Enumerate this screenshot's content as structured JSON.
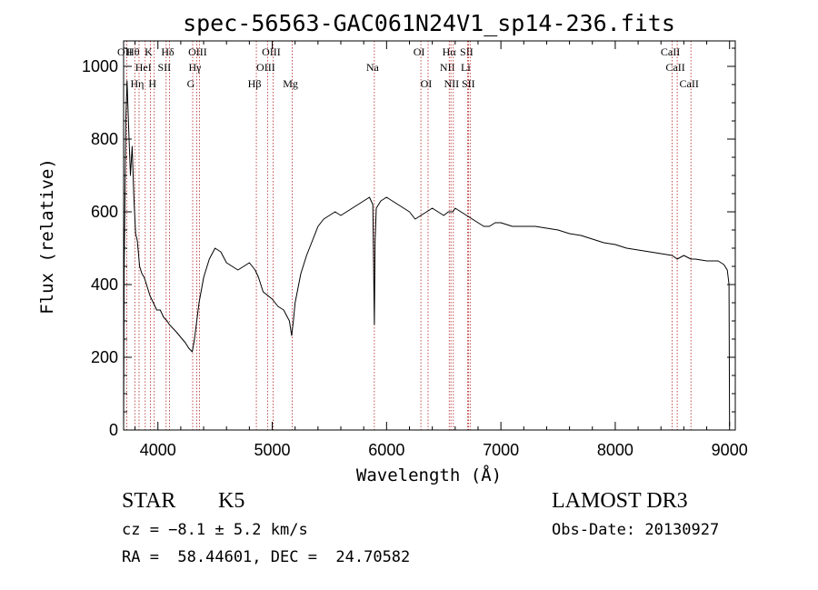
{
  "chart_data": {
    "type": "line",
    "title": "spec-56563-GAC061N24V1_sp14-236.fits",
    "xlabel": "Wavelength (Å)",
    "ylabel": "Flux (relative)",
    "xlim": [
      3700,
      9050
    ],
    "ylim": [
      0,
      1070
    ],
    "x_ticks": [
      4000,
      5000,
      6000,
      7000,
      8000,
      9000
    ],
    "y_ticks": [
      0,
      200,
      400,
      600,
      800,
      1000
    ],
    "grid": false,
    "series": [
      {
        "name": "flux",
        "x": [
          3700,
          3705,
          3720,
          3730,
          3745,
          3760,
          3775,
          3790,
          3805,
          3820,
          3840,
          3860,
          3880,
          3900,
          3930,
          3960,
          3990,
          4020,
          4050,
          4080,
          4100,
          4130,
          4160,
          4200,
          4240,
          4270,
          4300,
          4320,
          4340,
          4360,
          4400,
          4450,
          4500,
          4550,
          4600,
          4650,
          4700,
          4750,
          4800,
          4850,
          4880,
          4920,
          4960,
          5000,
          5050,
          5100,
          5150,
          5170,
          5185,
          5200,
          5250,
          5300,
          5350,
          5400,
          5450,
          5500,
          5550,
          5600,
          5650,
          5700,
          5750,
          5800,
          5850,
          5880,
          5893,
          5900,
          5910,
          5950,
          6000,
          6050,
          6100,
          6150,
          6200,
          6250,
          6300,
          6350,
          6400,
          6450,
          6500,
          6540,
          6563,
          6580,
          6600,
          6650,
          6700,
          6750,
          6800,
          6850,
          6900,
          6950,
          7000,
          7100,
          7200,
          7300,
          7400,
          7500,
          7600,
          7700,
          7800,
          7900,
          8000,
          8100,
          8200,
          8300,
          8400,
          8498,
          8542,
          8600,
          8662,
          8700,
          8800,
          8900,
          8950,
          8980,
          8995,
          9000
        ],
        "y": [
          0,
          440,
          860,
          960,
          820,
          700,
          780,
          640,
          540,
          520,
          450,
          430,
          420,
          400,
          370,
          350,
          330,
          330,
          310,
          300,
          290,
          280,
          270,
          255,
          240,
          225,
          215,
          250,
          300,
          350,
          420,
          470,
          500,
          490,
          460,
          450,
          440,
          450,
          460,
          440,
          420,
          380,
          370,
          360,
          340,
          330,
          300,
          260,
          300,
          350,
          430,
          480,
          520,
          560,
          580,
          590,
          600,
          590,
          600,
          610,
          620,
          630,
          640,
          620,
          290,
          520,
          610,
          630,
          640,
          630,
          620,
          610,
          600,
          580,
          590,
          600,
          610,
          600,
          590,
          600,
          600,
          600,
          610,
          600,
          590,
          580,
          570,
          560,
          560,
          570,
          570,
          560,
          560,
          560,
          555,
          550,
          540,
          535,
          525,
          515,
          510,
          500,
          495,
          490,
          485,
          480,
          470,
          480,
          470,
          470,
          465,
          465,
          455,
          440,
          400,
          10
        ]
      }
    ],
    "line_markers": [
      {
        "label": "Hθ",
        "wl": 3798,
        "row": 1
      },
      {
        "label": "OII",
        "wl": 3727,
        "row": 1
      },
      {
        "label": "K",
        "wl": 3934,
        "row": 1
      },
      {
        "label": "Hδ",
        "wl": 4102,
        "row": 1
      },
      {
        "label": "OIII",
        "wl": 4363,
        "row": 1
      },
      {
        "label": "OIII",
        "wl": 5007,
        "row": 1
      },
      {
        "label": "OI",
        "wl": 6300,
        "row": 1
      },
      {
        "label": "Hα",
        "wl": 6563,
        "row": 1
      },
      {
        "label": "SII",
        "wl": 6716,
        "row": 1
      },
      {
        "label": "CaII",
        "wl": 8498,
        "row": 1
      },
      {
        "label": "HeI",
        "wl": 3889,
        "row": 2
      },
      {
        "label": "SII",
        "wl": 4072,
        "row": 2
      },
      {
        "label": "Hγ",
        "wl": 4340,
        "row": 2
      },
      {
        "label": "OIII",
        "wl": 4959,
        "row": 2
      },
      {
        "label": "Na",
        "wl": 5893,
        "row": 2
      },
      {
        "label": "NII",
        "wl": 6548,
        "row": 2
      },
      {
        "label": "Li",
        "wl": 6708,
        "row": 2
      },
      {
        "label": "CaII",
        "wl": 8542,
        "row": 2
      },
      {
        "label": "Hη",
        "wl": 3835,
        "row": 3
      },
      {
        "label": "H",
        "wl": 3968,
        "row": 3
      },
      {
        "label": "G",
        "wl": 4304,
        "row": 3
      },
      {
        "label": "Hβ",
        "wl": 4861,
        "row": 3
      },
      {
        "label": "Mg",
        "wl": 5175,
        "row": 3
      },
      {
        "label": "OI",
        "wl": 6363,
        "row": 3
      },
      {
        "label": "NII",
        "wl": 6584,
        "row": 3
      },
      {
        "label": "SII",
        "wl": 6731,
        "row": 3
      },
      {
        "label": "CaII",
        "wl": 8662,
        "row": 3
      }
    ]
  },
  "info": {
    "class": "STAR",
    "subclass": "K5",
    "survey": "LAMOST DR3",
    "cz": "cz = −8.1 ± 5.2 km/s",
    "obs_date": "Obs-Date: 20130927",
    "coords": "RA =  58.44601, DEC =  24.70582"
  },
  "colors": {
    "line": "#000000",
    "marker": "#b22222"
  }
}
